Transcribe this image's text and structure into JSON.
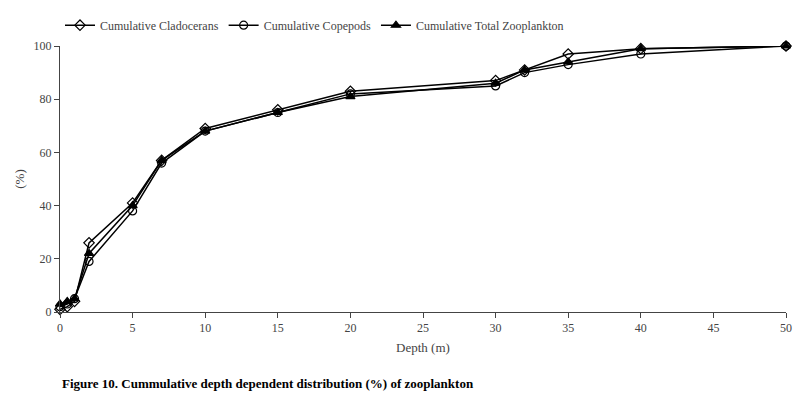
{
  "chart_data": {
    "type": "line",
    "xlabel": "Depth (m)",
    "ylabel": "(%)",
    "annotations": [
      "Figure 10. Cummulative depth dependent distribution (%) of zooplankton"
    ],
    "series": [
      {
        "name": "Cumulative Cladocerans",
        "color": "#000000",
        "marker": "diamond-open",
        "x": [
          0,
          0.5,
          1,
          2,
          5,
          7,
          10,
          15,
          20,
          30,
          32,
          35,
          40,
          50
        ],
        "values": [
          1,
          2,
          4,
          26,
          41,
          57,
          69,
          76,
          83,
          87,
          91,
          97,
          99,
          100
        ]
      },
      {
        "name": "Cumulative Copepods",
        "color": "#000000",
        "marker": "circle-open",
        "x": [
          0,
          0.5,
          1,
          2,
          5,
          7,
          10,
          15,
          20,
          30,
          32,
          35,
          40,
          50
        ],
        "values": [
          2,
          3,
          5,
          19,
          38,
          56,
          68,
          75,
          82,
          85,
          90,
          93,
          97,
          100
        ]
      },
      {
        "name": "Cumulative Total Zooplankton",
        "color": "#000000",
        "marker": "triangle-up",
        "x": [
          0,
          0.5,
          1,
          2,
          5,
          7,
          10,
          15,
          20,
          30,
          32,
          35,
          40,
          50
        ],
        "values": [
          3,
          4,
          5,
          22,
          40,
          57,
          68,
          75,
          81,
          86,
          91,
          94,
          99,
          100
        ]
      }
    ],
    "xlim": [
      0,
      50
    ],
    "ylim": [
      0,
      100
    ],
    "xticks": [
      0,
      5,
      10,
      15,
      20,
      25,
      30,
      35,
      40,
      45,
      50
    ],
    "yticks": [
      0,
      20,
      40,
      60,
      80,
      100
    ],
    "grid": false,
    "legend": "upper left"
  }
}
